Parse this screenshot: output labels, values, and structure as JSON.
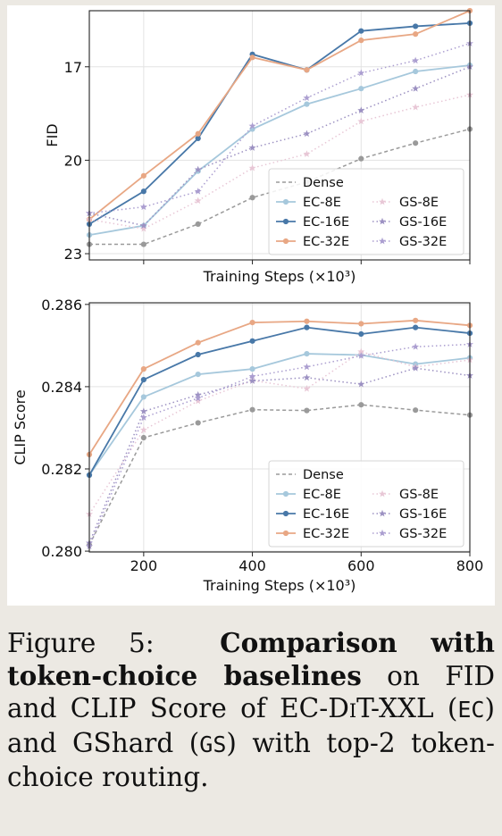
{
  "chart_data": [
    {
      "type": "line",
      "ylabel": "FID",
      "xlabel": "Training Steps (×10³)",
      "xlim": [
        100,
        800
      ],
      "ylim": [
        23.2,
        15.2
      ],
      "y_inverted": true,
      "y_ticks": [
        17,
        20,
        23
      ],
      "x_ticks": [
        200,
        400,
        600,
        800
      ],
      "x_tick_labels_visible": false,
      "grid": true,
      "legend_position": "bottom-right",
      "x": [
        100,
        200,
        300,
        400,
        500,
        600,
        700,
        800
      ],
      "series": [
        {
          "name": "Dense",
          "color": "#9a9a9a",
          "style": "dashed",
          "marker": "circle",
          "values": [
            22.7,
            22.7,
            22.05,
            21.2,
            20.7,
            19.95,
            19.45,
            19.0
          ]
        },
        {
          "name": "EC-8E",
          "color": "#a6c8dc",
          "style": "solid",
          "marker": "circle",
          "values": [
            22.4,
            22.1,
            20.35,
            19.0,
            18.2,
            17.7,
            17.15,
            16.95
          ]
        },
        {
          "name": "EC-16E",
          "color": "#4878a8",
          "style": "solid",
          "marker": "circle",
          "values": [
            22.05,
            21.0,
            19.3,
            16.6,
            17.1,
            15.85,
            15.7,
            15.6
          ]
        },
        {
          "name": "EC-32E",
          "color": "#e8a784",
          "style": "solid",
          "marker": "circle",
          "values": [
            21.9,
            20.5,
            19.15,
            16.7,
            17.1,
            16.15,
            15.95,
            15.2
          ]
        },
        {
          "name": "GS-8E",
          "color": "#e8c7d6",
          "style": "dotted",
          "marker": "star",
          "values": [
            21.9,
            22.2,
            21.3,
            20.25,
            19.8,
            18.75,
            18.3,
            17.9
          ]
        },
        {
          "name": "GS-16E",
          "color": "#9c91c2",
          "style": "dotted",
          "marker": "star",
          "values": [
            21.7,
            22.1,
            20.3,
            19.6,
            19.15,
            18.4,
            17.7,
            17.0
          ]
        },
        {
          "name": "GS-32E",
          "color": "#ab9ed0",
          "style": "dotted",
          "marker": "star",
          "values": [
            21.7,
            21.5,
            21.0,
            18.9,
            18.0,
            17.2,
            16.8,
            16.25
          ]
        }
      ]
    },
    {
      "type": "line",
      "ylabel": "CLIP Score",
      "xlabel": "Training Steps (×10³)",
      "xlim": [
        100,
        800
      ],
      "ylim": [
        0.27998,
        0.28604
      ],
      "y_ticks": [
        "0.280",
        "0.282",
        "0.284",
        "0.286"
      ],
      "x_ticks": [
        200,
        400,
        600,
        800
      ],
      "grid": true,
      "legend_position": "bottom-right",
      "x": [
        100,
        200,
        300,
        400,
        500,
        600,
        700,
        800
      ],
      "series": [
        {
          "name": "Dense",
          "color": "#9a9a9a",
          "style": "dashed",
          "marker": "circle",
          "values": [
            0.28015,
            0.28276,
            0.28312,
            0.28344,
            0.28342,
            0.28356,
            0.28343,
            0.28331
          ]
        },
        {
          "name": "EC-8E",
          "color": "#a6c8dc",
          "style": "solid",
          "marker": "circle",
          "values": [
            0.28185,
            0.28375,
            0.2843,
            0.28443,
            0.2848,
            0.28477,
            0.28455,
            0.2847
          ]
        },
        {
          "name": "EC-16E",
          "color": "#4878a8",
          "style": "solid",
          "marker": "circle",
          "values": [
            0.28185,
            0.28417,
            0.28478,
            0.28511,
            0.28544,
            0.28528,
            0.28544,
            0.2853
          ]
        },
        {
          "name": "EC-32E",
          "color": "#e8a784",
          "style": "solid",
          "marker": "circle",
          "values": [
            0.28235,
            0.28443,
            0.28507,
            0.28556,
            0.28559,
            0.28553,
            0.28561,
            0.28549
          ]
        },
        {
          "name": "GS-8E",
          "color": "#e8c7d6",
          "style": "dotted",
          "marker": "star",
          "values": [
            0.2809,
            0.28295,
            0.28365,
            0.28415,
            0.28395,
            0.28485,
            0.28448,
            0.28465
          ]
        },
        {
          "name": "GS-16E",
          "color": "#9c91c2",
          "style": "dotted",
          "marker": "star",
          "values": [
            0.2802,
            0.2834,
            0.2838,
            0.28414,
            0.28422,
            0.28406,
            0.28445,
            0.28427
          ]
        },
        {
          "name": "GS-32E",
          "color": "#ab9ed0",
          "style": "dotted",
          "marker": "star",
          "values": [
            0.28012,
            0.28325,
            0.28372,
            0.28425,
            0.28448,
            0.28475,
            0.28497,
            0.28503
          ]
        }
      ]
    }
  ],
  "caption": {
    "prefix": "Figure 5:",
    "bold": "Comparison with token-choice baselines",
    "part1": " on FID and CLIP Score of EC-D",
    "dit_small": "i",
    "part2": "T-XXL (",
    "ec_code": "EC",
    "part3": ") and GShard (",
    "gs_code": "GS",
    "part4": ") with top-2 token-choice routing."
  }
}
